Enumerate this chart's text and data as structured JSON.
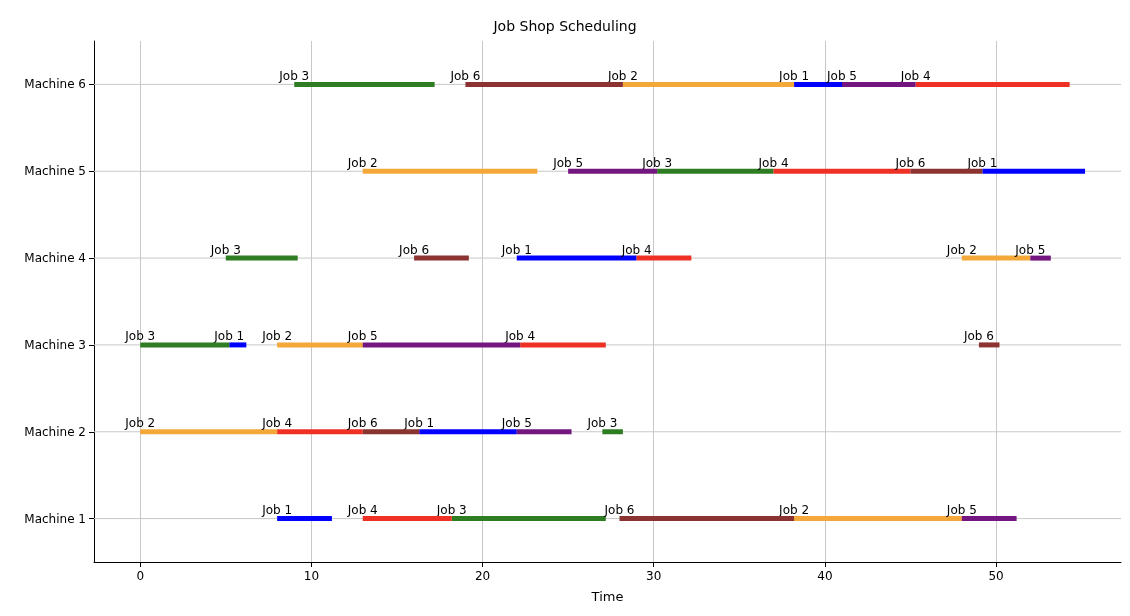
{
  "chart_data": {
    "type": "bar",
    "orientation": "horizontal",
    "title": "Job Shop Scheduling",
    "xlabel": "Time",
    "categories": [
      "Machine 6",
      "Machine 5",
      "Machine 4",
      "Machine 3",
      "Machine 2",
      "Machine 1"
    ],
    "xlim": [
      -2.7,
      57.3
    ],
    "xticks": [
      0,
      10,
      20,
      30,
      40,
      50
    ],
    "grid": true,
    "legend": false,
    "series": [
      {
        "name": "Job 1",
        "color": "#0000ff",
        "base": [
          38.2,
          49.2,
          22,
          5.2,
          16.3,
          8
        ],
        "values": [
          2.8,
          6,
          7,
          1,
          5.7,
          3.2
        ]
      },
      {
        "name": "Job 2",
        "color": "#f4a83a",
        "base": [
          28.2,
          13,
          48,
          8,
          0,
          38.2
        ],
        "values": [
          10,
          10.2,
          4,
          5,
          8,
          9.8
        ]
      },
      {
        "name": "Job 3",
        "color": "#2e7d22",
        "base": [
          9,
          30.2,
          5,
          0,
          27,
          18.2
        ],
        "values": [
          8.2,
          6.8,
          4.2,
          5.2,
          1.2,
          9
        ]
      },
      {
        "name": "Job 4",
        "color": "#ee3124",
        "base": [
          45.3,
          37,
          29,
          22.2,
          8,
          13
        ],
        "values": [
          9,
          8,
          3.2,
          5,
          5,
          5.2
        ]
      },
      {
        "name": "Job 5",
        "color": "#74167f",
        "base": [
          41,
          25,
          52,
          13,
          22,
          48
        ],
        "values": [
          4.3,
          5.2,
          1.2,
          9.2,
          3.2,
          3.2
        ]
      },
      {
        "name": "Job 6",
        "color": "#8b3330",
        "base": [
          19,
          45,
          16,
          49,
          13,
          28
        ],
        "values": [
          9.2,
          4.2,
          3.2,
          1.2,
          3.3,
          10.2
        ]
      }
    ]
  }
}
